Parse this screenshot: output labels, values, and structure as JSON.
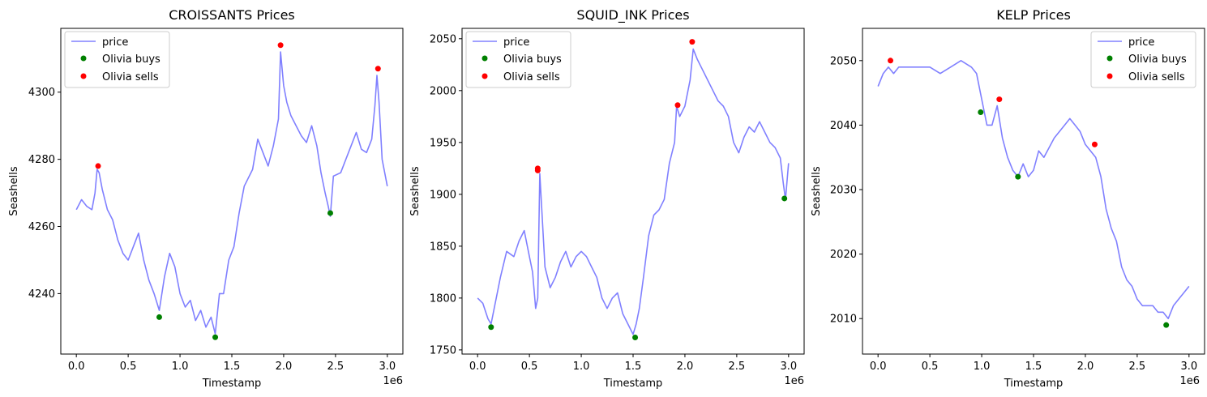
{
  "colors": {
    "price": "#8080ff",
    "buy": "#008000",
    "sell": "#ff0000",
    "axis": "#000000",
    "legend_border": "#cccccc"
  },
  "chart_data": [
    {
      "type": "line",
      "title": "CROISSANTS Prices",
      "xlabel": "Timestamp",
      "ylabel": "Seashells",
      "x_offset_label": "1e6",
      "xlim": [
        -0.15,
        3.15
      ],
      "ylim": [
        4222,
        4319
      ],
      "xticks": [
        0.0,
        0.5,
        1.0,
        1.5,
        2.0,
        2.5,
        3.0
      ],
      "xtick_labels": [
        "0.0",
        "0.5",
        "1.0",
        "1.5",
        "2.0",
        "2.5",
        "3.0"
      ],
      "yticks": [
        4240,
        4260,
        4280,
        4300
      ],
      "ytick_labels": [
        "4240",
        "4260",
        "4280",
        "4300"
      ],
      "legend_position": "upper-left",
      "legend": {
        "price": "price",
        "buys": "Olivia buys",
        "sells": "Olivia sells"
      },
      "series": [
        {
          "name": "price",
          "x": [
            0.0,
            0.05,
            0.1,
            0.15,
            0.18,
            0.2,
            0.22,
            0.25,
            0.3,
            0.35,
            0.4,
            0.45,
            0.5,
            0.55,
            0.6,
            0.65,
            0.7,
            0.75,
            0.8,
            0.85,
            0.9,
            0.95,
            1.0,
            1.05,
            1.1,
            1.15,
            1.2,
            1.25,
            1.3,
            1.34,
            1.38,
            1.42,
            1.47,
            1.52,
            1.57,
            1.62,
            1.7,
            1.75,
            1.8,
            1.85,
            1.9,
            1.95,
            1.97,
            2.0,
            2.03,
            2.07,
            2.12,
            2.17,
            2.22,
            2.27,
            2.32,
            2.36,
            2.4,
            2.43,
            2.45,
            2.48,
            2.55,
            2.6,
            2.65,
            2.7,
            2.75,
            2.8,
            2.85,
            2.88,
            2.9,
            2.92,
            2.95,
            3.0
          ],
          "y": [
            4265,
            4268,
            4266,
            4265,
            4270,
            4277,
            4276,
            4271,
            4265,
            4262,
            4256,
            4252,
            4250,
            4254,
            4258,
            4250,
            4244,
            4240,
            4235,
            4245,
            4252,
            4248,
            4240,
            4236,
            4238,
            4232,
            4235,
            4230,
            4233,
            4228,
            4240,
            4240,
            4250,
            4254,
            4264,
            4272,
            4277,
            4286,
            4282,
            4278,
            4284,
            4292,
            4312,
            4302,
            4297,
            4293,
            4290,
            4287,
            4285,
            4290,
            4284,
            4276,
            4270,
            4266,
            4263,
            4275,
            4276,
            4280,
            4284,
            4288,
            4283,
            4282,
            4286,
            4296,
            4305,
            4297,
            4280,
            4272
          ]
        }
      ],
      "buys": {
        "x": [
          0.8,
          1.34,
          2.45
        ],
        "y": [
          4233,
          4227,
          4264
        ]
      },
      "sells": {
        "x": [
          0.21,
          1.97,
          2.91
        ],
        "y": [
          4278,
          4314,
          4307
        ]
      }
    },
    {
      "type": "line",
      "title": "SQUID_INK Prices",
      "xlabel": "Timestamp",
      "ylabel": "Seashells",
      "x_offset_label": "1e6",
      "xlim": [
        -0.15,
        3.15
      ],
      "ylim": [
        1746,
        2060
      ],
      "xticks": [
        0.0,
        0.5,
        1.0,
        1.5,
        2.0,
        2.5,
        3.0
      ],
      "xtick_labels": [
        "0.0",
        "0.5",
        "1.0",
        "1.5",
        "2.0",
        "2.5",
        "3.0"
      ],
      "yticks": [
        1750,
        1800,
        1850,
        1900,
        1950,
        2000,
        2050
      ],
      "ytick_labels": [
        "1750",
        "1800",
        "1850",
        "1900",
        "1950",
        "2000",
        "2050"
      ],
      "legend_position": "upper-left",
      "legend": {
        "price": "price",
        "buys": "Olivia buys",
        "sells": "Olivia sells"
      },
      "series": [
        {
          "name": "price",
          "x": [
            0.0,
            0.05,
            0.1,
            0.13,
            0.18,
            0.22,
            0.28,
            0.35,
            0.4,
            0.45,
            0.5,
            0.53,
            0.56,
            0.58,
            0.6,
            0.65,
            0.7,
            0.75,
            0.8,
            0.85,
            0.9,
            0.95,
            1.0,
            1.05,
            1.1,
            1.15,
            1.2,
            1.25,
            1.3,
            1.35,
            1.4,
            1.45,
            1.5,
            1.53,
            1.56,
            1.6,
            1.65,
            1.7,
            1.75,
            1.8,
            1.85,
            1.9,
            1.92,
            1.95,
            2.0,
            2.05,
            2.08,
            2.12,
            2.17,
            2.22,
            2.27,
            2.32,
            2.37,
            2.42,
            2.47,
            2.52,
            2.57,
            2.62,
            2.67,
            2.72,
            2.77,
            2.82,
            2.87,
            2.92,
            2.95,
            2.97,
            3.0
          ],
          "y": [
            1800,
            1795,
            1780,
            1775,
            1800,
            1820,
            1845,
            1840,
            1855,
            1865,
            1840,
            1825,
            1790,
            1800,
            1920,
            1830,
            1810,
            1820,
            1835,
            1845,
            1830,
            1840,
            1845,
            1840,
            1830,
            1820,
            1800,
            1790,
            1800,
            1805,
            1785,
            1775,
            1765,
            1775,
            1790,
            1820,
            1860,
            1880,
            1885,
            1895,
            1930,
            1950,
            1985,
            1975,
            1985,
            2010,
            2040,
            2030,
            2020,
            2010,
            2000,
            1990,
            1985,
            1975,
            1950,
            1940,
            1955,
            1965,
            1960,
            1970,
            1960,
            1950,
            1945,
            1935,
            1910,
            1895,
            1930
          ]
        }
      ],
      "buys": {
        "x": [
          0.13,
          1.52,
          2.96
        ],
        "y": [
          1772,
          1762,
          1896
        ]
      },
      "sells": {
        "x": [
          0.58,
          0.58,
          1.93,
          2.07
        ],
        "y": [
          1925,
          1923,
          1986,
          2047
        ]
      }
    },
    {
      "type": "line",
      "title": "KELP Prices",
      "xlabel": "Timestamp",
      "ylabel": "Seashells",
      "x_offset_label": "1e6",
      "xlim": [
        -0.15,
        3.15
      ],
      "ylim": [
        2004.5,
        2055
      ],
      "xticks": [
        0.0,
        0.5,
        1.0,
        1.5,
        2.0,
        2.5,
        3.0
      ],
      "xtick_labels": [
        "0.0",
        "0.5",
        "1.0",
        "1.5",
        "2.0",
        "2.5",
        "3.0"
      ],
      "yticks": [
        2010,
        2020,
        2030,
        2040,
        2050
      ],
      "ytick_labels": [
        "2010",
        "2020",
        "2030",
        "2040",
        "2050"
      ],
      "legend_position": "upper-right",
      "legend": {
        "price": "price",
        "buys": "Olivia buys",
        "sells": "Olivia sells"
      },
      "series": [
        {
          "name": "price",
          "x": [
            0.0,
            0.05,
            0.1,
            0.15,
            0.2,
            0.3,
            0.4,
            0.5,
            0.6,
            0.7,
            0.8,
            0.9,
            0.95,
            1.0,
            1.05,
            1.1,
            1.15,
            1.2,
            1.25,
            1.3,
            1.35,
            1.4,
            1.45,
            1.5,
            1.55,
            1.6,
            1.7,
            1.8,
            1.85,
            1.9,
            1.95,
            2.0,
            2.05,
            2.1,
            2.15,
            2.2,
            2.25,
            2.3,
            2.35,
            2.4,
            2.45,
            2.5,
            2.55,
            2.6,
            2.65,
            2.7,
            2.75,
            2.8,
            2.85,
            2.9,
            2.95,
            3.0
          ],
          "y": [
            2046,
            2048,
            2049,
            2048,
            2049,
            2049,
            2049,
            2049,
            2048,
            2049,
            2050,
            2049,
            2048,
            2044,
            2040,
            2040,
            2043,
            2038,
            2035,
            2033,
            2032,
            2034,
            2032,
            2033,
            2036,
            2035,
            2038,
            2040,
            2041,
            2040,
            2039,
            2037,
            2036,
            2035,
            2032,
            2027,
            2024,
            2022,
            2018,
            2016,
            2015,
            2013,
            2012,
            2012,
            2012,
            2011,
            2011,
            2010,
            2012,
            2013,
            2014,
            2015
          ]
        }
      ],
      "buys": {
        "x": [
          0.99,
          1.35,
          2.78
        ],
        "y": [
          2042,
          2032,
          2009
        ]
      },
      "sells": {
        "x": [
          0.12,
          1.17,
          2.09
        ],
        "y": [
          2050,
          2044,
          2037
        ]
      }
    }
  ]
}
